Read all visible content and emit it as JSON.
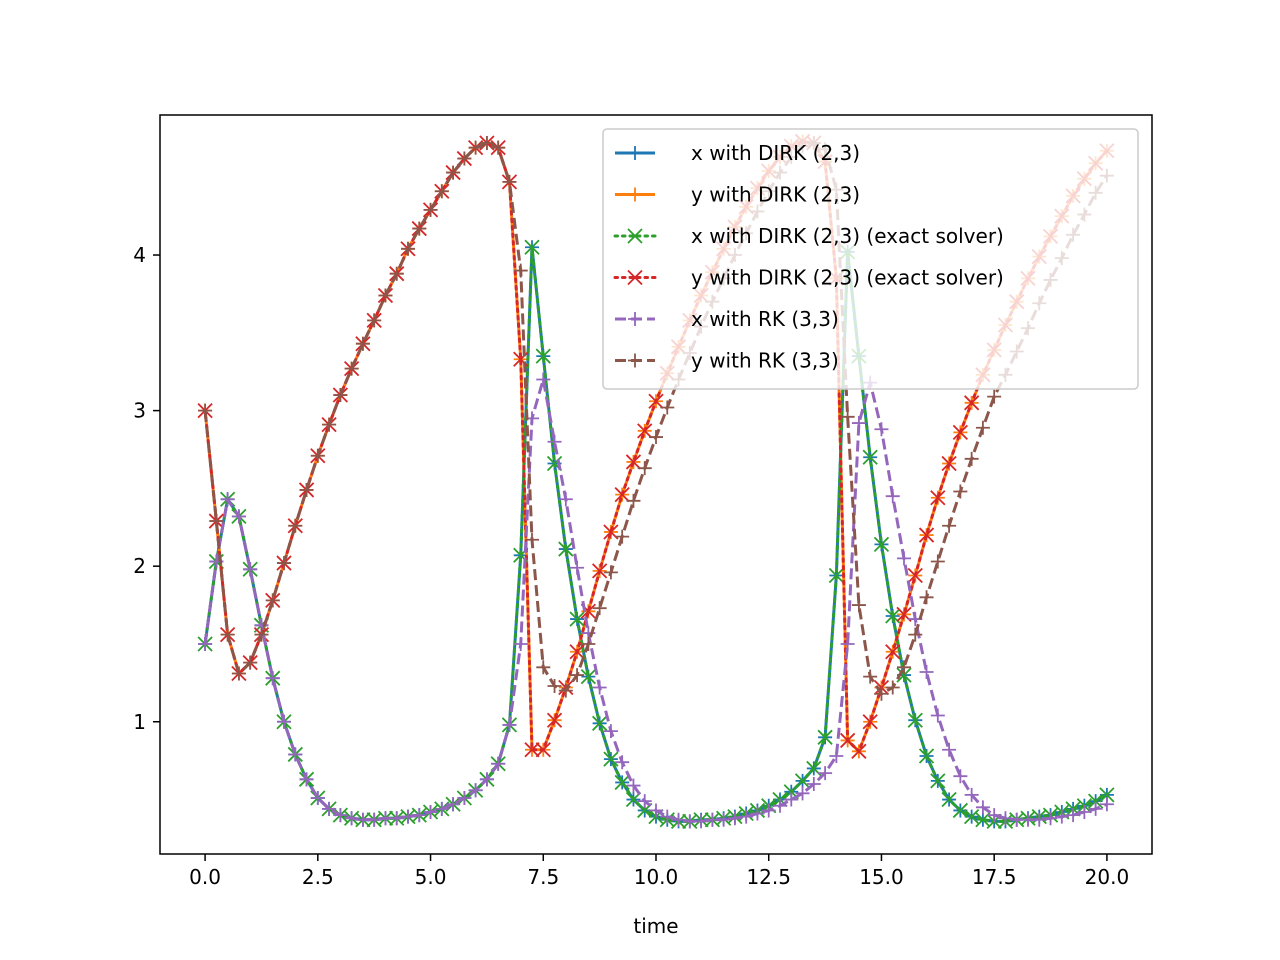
{
  "chart_data": {
    "type": "line",
    "xlabel": "time",
    "ylabel": "",
    "xlim": [
      -1.0,
      21.0
    ],
    "ylim": [
      0.15,
      4.9
    ],
    "xticks": [
      0.0,
      2.5,
      5.0,
      7.5,
      10.0,
      12.5,
      15.0,
      17.5,
      20.0
    ],
    "xtick_labels": [
      "0.0",
      "2.5",
      "5.0",
      "7.5",
      "10.0",
      "12.5",
      "15.0",
      "17.5",
      "20.0"
    ],
    "yticks": [
      1,
      2,
      3,
      4
    ],
    "ytick_labels": [
      "1",
      "2",
      "3",
      "4"
    ],
    "grid": false,
    "legend_position": "top-right",
    "colors": {
      "x_dirk": "#1f77b4",
      "y_dirk": "#ff7f0e",
      "x_exact": "#2ca02c",
      "y_exact": "#d62728",
      "x_rk": "#9467bd",
      "y_rk": "#8c564b"
    },
    "series": [
      {
        "name": "x with DIRK (2,3)",
        "color": "#1f77b4",
        "linestyle": "solid",
        "marker": "plus",
        "x": [
          0,
          0.25,
          0.5,
          0.75,
          1.0,
          1.25,
          1.5,
          1.75,
          2.0,
          2.25,
          2.5,
          2.75,
          3.0,
          3.25,
          3.5,
          3.75,
          4.0,
          4.25,
          4.5,
          4.75,
          5.0,
          5.25,
          5.5,
          5.75,
          6.0,
          6.25,
          6.5,
          6.75,
          7.0,
          7.25,
          7.5,
          7.75,
          8.0,
          8.25,
          8.5,
          8.75,
          9.0,
          9.25,
          9.5,
          9.75,
          10.0,
          10.25,
          10.5,
          10.75,
          11.0,
          11.25,
          11.5,
          11.75,
          12.0,
          12.25,
          12.5,
          12.75,
          13.0,
          13.25,
          13.5,
          13.75,
          14.0,
          14.25,
          14.5,
          14.75,
          15.0,
          15.25,
          15.5,
          15.75,
          16.0,
          16.25,
          16.5,
          16.75,
          17.0,
          17.25,
          17.5,
          17.75,
          18.0,
          18.25,
          18.5,
          18.75,
          19.0,
          19.25,
          19.5,
          19.75,
          20.0
        ],
        "y": [
          1.5,
          2.03,
          2.43,
          2.32,
          1.98,
          1.62,
          1.28,
          1.0,
          0.79,
          0.63,
          0.51,
          0.44,
          0.4,
          0.38,
          0.37,
          0.37,
          0.38,
          0.38,
          0.39,
          0.4,
          0.42,
          0.44,
          0.47,
          0.51,
          0.56,
          0.63,
          0.73,
          0.98,
          2.07,
          4.05,
          3.35,
          2.66,
          2.11,
          1.66,
          1.29,
          0.99,
          0.76,
          0.61,
          0.5,
          0.43,
          0.39,
          0.37,
          0.36,
          0.36,
          0.37,
          0.37,
          0.38,
          0.39,
          0.41,
          0.43,
          0.46,
          0.5,
          0.55,
          0.62,
          0.7,
          0.9,
          1.94,
          4.02,
          3.35,
          2.7,
          2.14,
          1.68,
          1.3,
          1.01,
          0.78,
          0.62,
          0.5,
          0.43,
          0.39,
          0.37,
          0.36,
          0.36,
          0.37,
          0.38,
          0.39,
          0.4,
          0.42,
          0.44,
          0.46,
          0.49,
          0.53
        ]
      },
      {
        "name": "y with DIRK (2,3)",
        "color": "#ff7f0e",
        "linestyle": "solid",
        "marker": "plus",
        "x": [
          0,
          0.25,
          0.5,
          0.75,
          1.0,
          1.25,
          1.5,
          1.75,
          2.0,
          2.25,
          2.5,
          2.75,
          3.0,
          3.25,
          3.5,
          3.75,
          4.0,
          4.25,
          4.5,
          4.75,
          5.0,
          5.25,
          5.5,
          5.75,
          6.0,
          6.25,
          6.5,
          6.75,
          7.0,
          7.25,
          7.5,
          7.75,
          8.0,
          8.25,
          8.5,
          8.75,
          9.0,
          9.25,
          9.5,
          9.75,
          10.0,
          10.25,
          10.5,
          10.75,
          11.0,
          11.25,
          11.5,
          11.75,
          12.0,
          12.25,
          12.5,
          12.75,
          13.0,
          13.25,
          13.5,
          13.75,
          14.0,
          14.25,
          14.5,
          14.75,
          15.0,
          15.25,
          15.5,
          15.75,
          16.0,
          16.25,
          16.5,
          16.75,
          17.0,
          17.25,
          17.5,
          17.75,
          18.0,
          18.25,
          18.5,
          18.75,
          19.0,
          19.25,
          19.5,
          19.75,
          20.0
        ],
        "y": [
          3.0,
          2.29,
          1.56,
          1.31,
          1.38,
          1.56,
          1.78,
          2.02,
          2.26,
          2.49,
          2.71,
          2.91,
          3.1,
          3.27,
          3.43,
          3.58,
          3.74,
          3.88,
          4.04,
          4.17,
          4.29,
          4.41,
          4.53,
          4.62,
          4.69,
          4.72,
          4.69,
          4.47,
          3.33,
          0.82,
          0.82,
          1.01,
          1.22,
          1.45,
          1.71,
          1.97,
          2.22,
          2.46,
          2.67,
          2.87,
          3.06,
          3.24,
          3.41,
          3.58,
          3.74,
          3.89,
          4.04,
          4.18,
          4.31,
          4.43,
          4.54,
          4.63,
          4.7,
          4.73,
          4.72,
          4.6,
          3.85,
          0.88,
          0.81,
          1.0,
          1.22,
          1.45,
          1.69,
          1.94,
          2.2,
          2.44,
          2.66,
          2.86,
          3.05,
          3.23,
          3.39,
          3.55,
          3.7,
          3.85,
          3.99,
          4.12,
          4.25,
          4.38,
          4.49,
          4.59,
          4.67
        ]
      },
      {
        "name": "x with DIRK (2,3) (exact solver)",
        "color": "#2ca02c",
        "linestyle": "dotted",
        "marker": "x",
        "x": [
          0,
          0.25,
          0.5,
          0.75,
          1.0,
          1.25,
          1.5,
          1.75,
          2.0,
          2.25,
          2.5,
          2.75,
          3.0,
          3.25,
          3.5,
          3.75,
          4.0,
          4.25,
          4.5,
          4.75,
          5.0,
          5.25,
          5.5,
          5.75,
          6.0,
          6.25,
          6.5,
          6.75,
          7.0,
          7.25,
          7.5,
          7.75,
          8.0,
          8.25,
          8.5,
          8.75,
          9.0,
          9.25,
          9.5,
          9.75,
          10.0,
          10.25,
          10.5,
          10.75,
          11.0,
          11.25,
          11.5,
          11.75,
          12.0,
          12.25,
          12.5,
          12.75,
          13.0,
          13.25,
          13.5,
          13.75,
          14.0,
          14.25,
          14.5,
          14.75,
          15.0,
          15.25,
          15.5,
          15.75,
          16.0,
          16.25,
          16.5,
          16.75,
          17.0,
          17.25,
          17.5,
          17.75,
          18.0,
          18.25,
          18.5,
          18.75,
          19.0,
          19.25,
          19.5,
          19.75,
          20.0
        ],
        "y": [
          1.5,
          2.03,
          2.43,
          2.32,
          1.98,
          1.62,
          1.28,
          1.0,
          0.79,
          0.63,
          0.51,
          0.44,
          0.4,
          0.38,
          0.37,
          0.37,
          0.38,
          0.38,
          0.39,
          0.4,
          0.42,
          0.44,
          0.47,
          0.51,
          0.56,
          0.63,
          0.73,
          0.98,
          2.07,
          4.05,
          3.35,
          2.66,
          2.11,
          1.66,
          1.29,
          0.99,
          0.76,
          0.61,
          0.5,
          0.43,
          0.39,
          0.37,
          0.36,
          0.36,
          0.37,
          0.37,
          0.38,
          0.39,
          0.41,
          0.43,
          0.46,
          0.5,
          0.55,
          0.62,
          0.7,
          0.9,
          1.94,
          4.02,
          3.35,
          2.7,
          2.14,
          1.68,
          1.3,
          1.01,
          0.78,
          0.62,
          0.5,
          0.43,
          0.39,
          0.37,
          0.36,
          0.36,
          0.37,
          0.38,
          0.39,
          0.4,
          0.42,
          0.44,
          0.46,
          0.49,
          0.53
        ]
      },
      {
        "name": "y with DIRK (2,3) (exact solver)",
        "color": "#d62728",
        "linestyle": "dotted",
        "marker": "x",
        "x": [
          0,
          0.25,
          0.5,
          0.75,
          1.0,
          1.25,
          1.5,
          1.75,
          2.0,
          2.25,
          2.5,
          2.75,
          3.0,
          3.25,
          3.5,
          3.75,
          4.0,
          4.25,
          4.5,
          4.75,
          5.0,
          5.25,
          5.5,
          5.75,
          6.0,
          6.25,
          6.5,
          6.75,
          7.0,
          7.25,
          7.5,
          7.75,
          8.0,
          8.25,
          8.5,
          8.75,
          9.0,
          9.25,
          9.5,
          9.75,
          10.0,
          10.25,
          10.5,
          10.75,
          11.0,
          11.25,
          11.5,
          11.75,
          12.0,
          12.25,
          12.5,
          12.75,
          13.0,
          13.25,
          13.5,
          13.75,
          14.0,
          14.25,
          14.5,
          14.75,
          15.0,
          15.25,
          15.5,
          15.75,
          16.0,
          16.25,
          16.5,
          16.75,
          17.0,
          17.25,
          17.5,
          17.75,
          18.0,
          18.25,
          18.5,
          18.75,
          19.0,
          19.25,
          19.5,
          19.75,
          20.0
        ],
        "y": [
          3.0,
          2.29,
          1.56,
          1.31,
          1.38,
          1.56,
          1.78,
          2.02,
          2.26,
          2.49,
          2.71,
          2.91,
          3.1,
          3.27,
          3.43,
          3.58,
          3.74,
          3.88,
          4.04,
          4.17,
          4.29,
          4.41,
          4.53,
          4.62,
          4.69,
          4.72,
          4.69,
          4.47,
          3.33,
          0.82,
          0.82,
          1.01,
          1.22,
          1.45,
          1.71,
          1.97,
          2.22,
          2.46,
          2.67,
          2.87,
          3.06,
          3.24,
          3.41,
          3.58,
          3.74,
          3.89,
          4.04,
          4.18,
          4.31,
          4.43,
          4.54,
          4.63,
          4.7,
          4.73,
          4.72,
          4.6,
          3.85,
          0.88,
          0.81,
          1.0,
          1.22,
          1.45,
          1.69,
          1.94,
          2.2,
          2.44,
          2.66,
          2.86,
          3.05,
          3.23,
          3.39,
          3.55,
          3.7,
          3.85,
          3.99,
          4.12,
          4.25,
          4.38,
          4.49,
          4.59,
          4.67
        ]
      },
      {
        "name": "x with RK (3,3)",
        "color": "#9467bd",
        "linestyle": "dashed",
        "marker": "plus",
        "x": [
          0,
          0.25,
          0.5,
          0.75,
          1.0,
          1.25,
          1.5,
          1.75,
          2.0,
          2.25,
          2.5,
          2.75,
          3.0,
          3.25,
          3.5,
          3.75,
          4.0,
          4.25,
          4.5,
          4.75,
          5.0,
          5.25,
          5.5,
          5.75,
          6.0,
          6.25,
          6.5,
          6.75,
          7.0,
          7.25,
          7.5,
          7.75,
          8.0,
          8.25,
          8.5,
          8.75,
          9.0,
          9.25,
          9.5,
          9.75,
          10.0,
          10.25,
          10.5,
          10.75,
          11.0,
          11.25,
          11.5,
          11.75,
          12.0,
          12.25,
          12.5,
          12.75,
          13.0,
          13.25,
          13.5,
          13.75,
          14.0,
          14.25,
          14.5,
          14.75,
          15.0,
          15.25,
          15.5,
          15.75,
          16.0,
          16.25,
          16.5,
          16.75,
          17.0,
          17.25,
          17.5,
          17.75,
          18.0,
          18.25,
          18.5,
          18.75,
          19.0,
          19.25,
          19.5,
          19.75,
          20.0
        ],
        "y": [
          1.5,
          2.03,
          2.43,
          2.32,
          1.98,
          1.62,
          1.28,
          1.0,
          0.79,
          0.63,
          0.51,
          0.44,
          0.4,
          0.38,
          0.37,
          0.37,
          0.38,
          0.38,
          0.39,
          0.4,
          0.42,
          0.44,
          0.47,
          0.51,
          0.56,
          0.63,
          0.73,
          0.98,
          1.5,
          2.95,
          3.2,
          2.8,
          2.43,
          1.99,
          1.57,
          1.22,
          0.94,
          0.74,
          0.59,
          0.49,
          0.43,
          0.39,
          0.37,
          0.36,
          0.36,
          0.37,
          0.37,
          0.38,
          0.39,
          0.41,
          0.43,
          0.46,
          0.5,
          0.54,
          0.6,
          0.67,
          0.78,
          1.5,
          2.92,
          3.18,
          2.88,
          2.45,
          2.05,
          1.66,
          1.32,
          1.04,
          0.82,
          0.65,
          0.53,
          0.45,
          0.4,
          0.38,
          0.37,
          0.37,
          0.37,
          0.38,
          0.39,
          0.4,
          0.42,
          0.44,
          0.47
        ]
      },
      {
        "name": "y with RK (3,3)",
        "color": "#8c564b",
        "linestyle": "dashed",
        "marker": "plus",
        "x": [
          0,
          0.25,
          0.5,
          0.75,
          1.0,
          1.25,
          1.5,
          1.75,
          2.0,
          2.25,
          2.5,
          2.75,
          3.0,
          3.25,
          3.5,
          3.75,
          4.0,
          4.25,
          4.5,
          4.75,
          5.0,
          5.25,
          5.5,
          5.75,
          6.0,
          6.25,
          6.5,
          6.75,
          7.0,
          7.25,
          7.5,
          7.75,
          8.0,
          8.25,
          8.5,
          8.75,
          9.0,
          9.25,
          9.5,
          9.75,
          10.0,
          10.25,
          10.5,
          10.75,
          11.0,
          11.25,
          11.5,
          11.75,
          12.0,
          12.25,
          12.5,
          12.75,
          13.0,
          13.25,
          13.5,
          13.75,
          14.0,
          14.25,
          14.5,
          14.75,
          15.0,
          15.25,
          15.5,
          15.75,
          16.0,
          16.25,
          16.5,
          16.75,
          17.0,
          17.25,
          17.5,
          17.75,
          18.0,
          18.25,
          18.5,
          18.75,
          19.0,
          19.25,
          19.5,
          19.75,
          20.0
        ],
        "y": [
          3.0,
          2.29,
          1.56,
          1.31,
          1.38,
          1.56,
          1.78,
          2.02,
          2.26,
          2.49,
          2.71,
          2.91,
          3.1,
          3.27,
          3.43,
          3.58,
          3.74,
          3.88,
          4.04,
          4.17,
          4.29,
          4.41,
          4.53,
          4.62,
          4.69,
          4.72,
          4.69,
          4.47,
          3.9,
          2.17,
          1.35,
          1.23,
          1.2,
          1.3,
          1.5,
          1.73,
          1.96,
          2.19,
          2.42,
          2.63,
          2.83,
          3.02,
          3.2,
          3.37,
          3.54,
          3.7,
          3.85,
          4.0,
          4.14,
          4.28,
          4.41,
          4.53,
          4.63,
          4.7,
          4.72,
          4.68,
          4.42,
          2.96,
          1.75,
          1.29,
          1.18,
          1.22,
          1.35,
          1.56,
          1.8,
          2.03,
          2.26,
          2.48,
          2.69,
          2.89,
          3.09,
          3.23,
          3.38,
          3.53,
          3.69,
          3.84,
          3.98,
          4.13,
          4.26,
          4.4,
          4.51
        ]
      }
    ]
  }
}
